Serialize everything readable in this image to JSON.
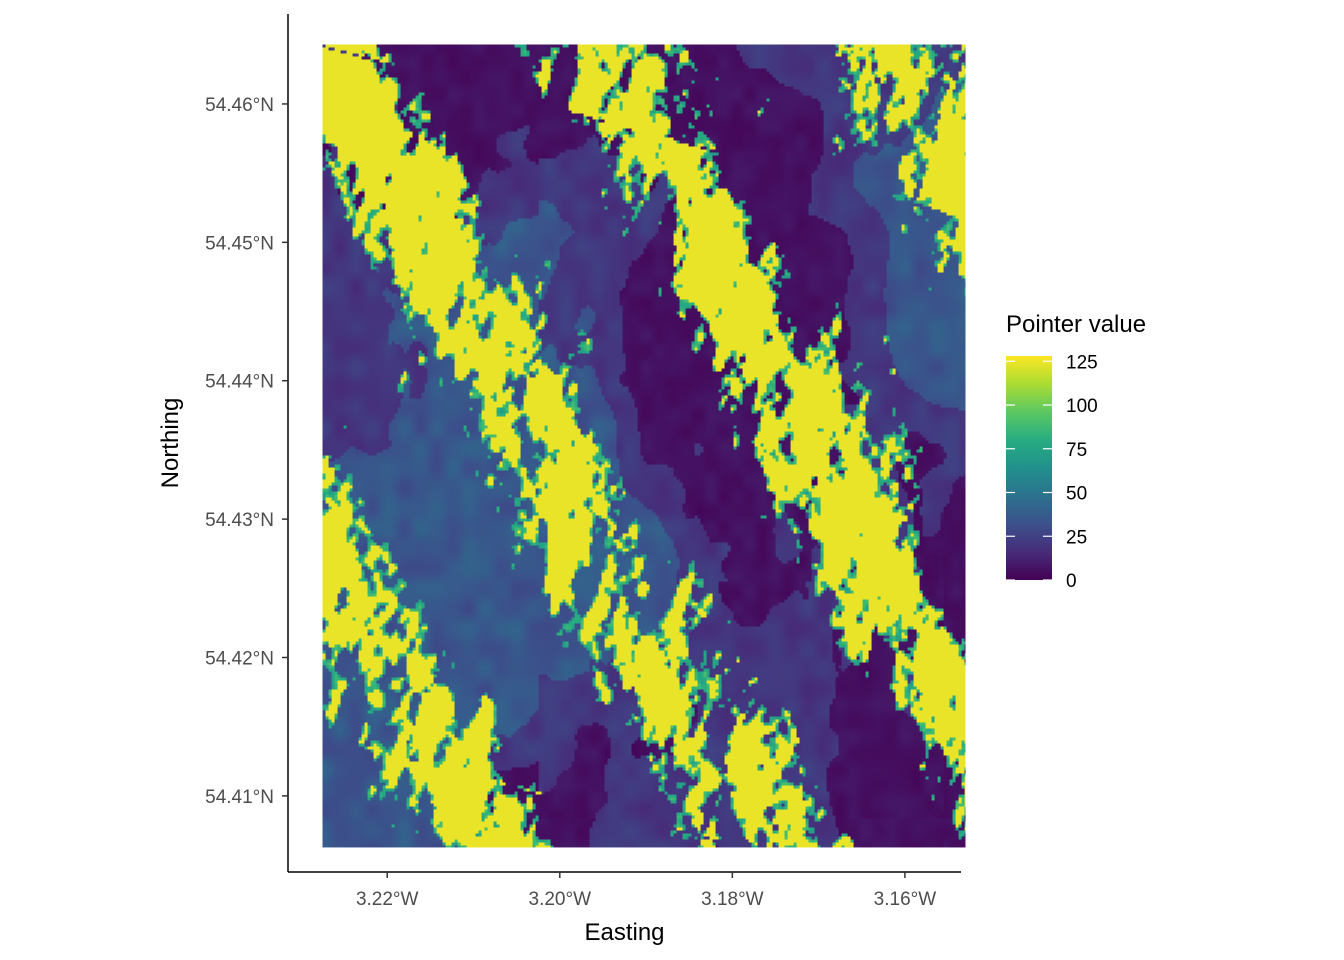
{
  "chart_data": {
    "type": "heatmap",
    "title": "",
    "xlabel": "Easting",
    "ylabel": "Northing",
    "x_ticks": [
      "3.22°W",
      "3.20°W",
      "3.18°W",
      "3.16°W"
    ],
    "x_tick_values": [
      -3.22,
      -3.2,
      -3.18,
      -3.16
    ],
    "y_ticks": [
      "54.46°N",
      "54.45°N",
      "54.44°N",
      "54.43°N",
      "54.42°N",
      "54.41°N"
    ],
    "y_tick_values": [
      54.46,
      54.45,
      54.44,
      54.43,
      54.42,
      54.41
    ],
    "xlim": [
      -3.2315,
      -3.1535
    ],
    "ylim": [
      54.4045,
      54.4665
    ],
    "raster_extent": {
      "xmin": -3.2275,
      "xmax": -3.153,
      "ymin": 54.4063,
      "ymax": 54.4643
    },
    "grid": false,
    "legend": {
      "title": "Pointer value",
      "position": "right",
      "labels": [
        "0",
        "25",
        "50",
        "75",
        "100",
        "125"
      ],
      "values": [
        0,
        25,
        50,
        75,
        100,
        125
      ],
      "range": [
        0,
        128
      ],
      "palette": "viridis",
      "colors": [
        "#440154",
        "#472c7a",
        "#3b518b",
        "#2c728e",
        "#21908d",
        "#27ad81",
        "#5cc863",
        "#aadc32",
        "#fde725"
      ]
    }
  }
}
